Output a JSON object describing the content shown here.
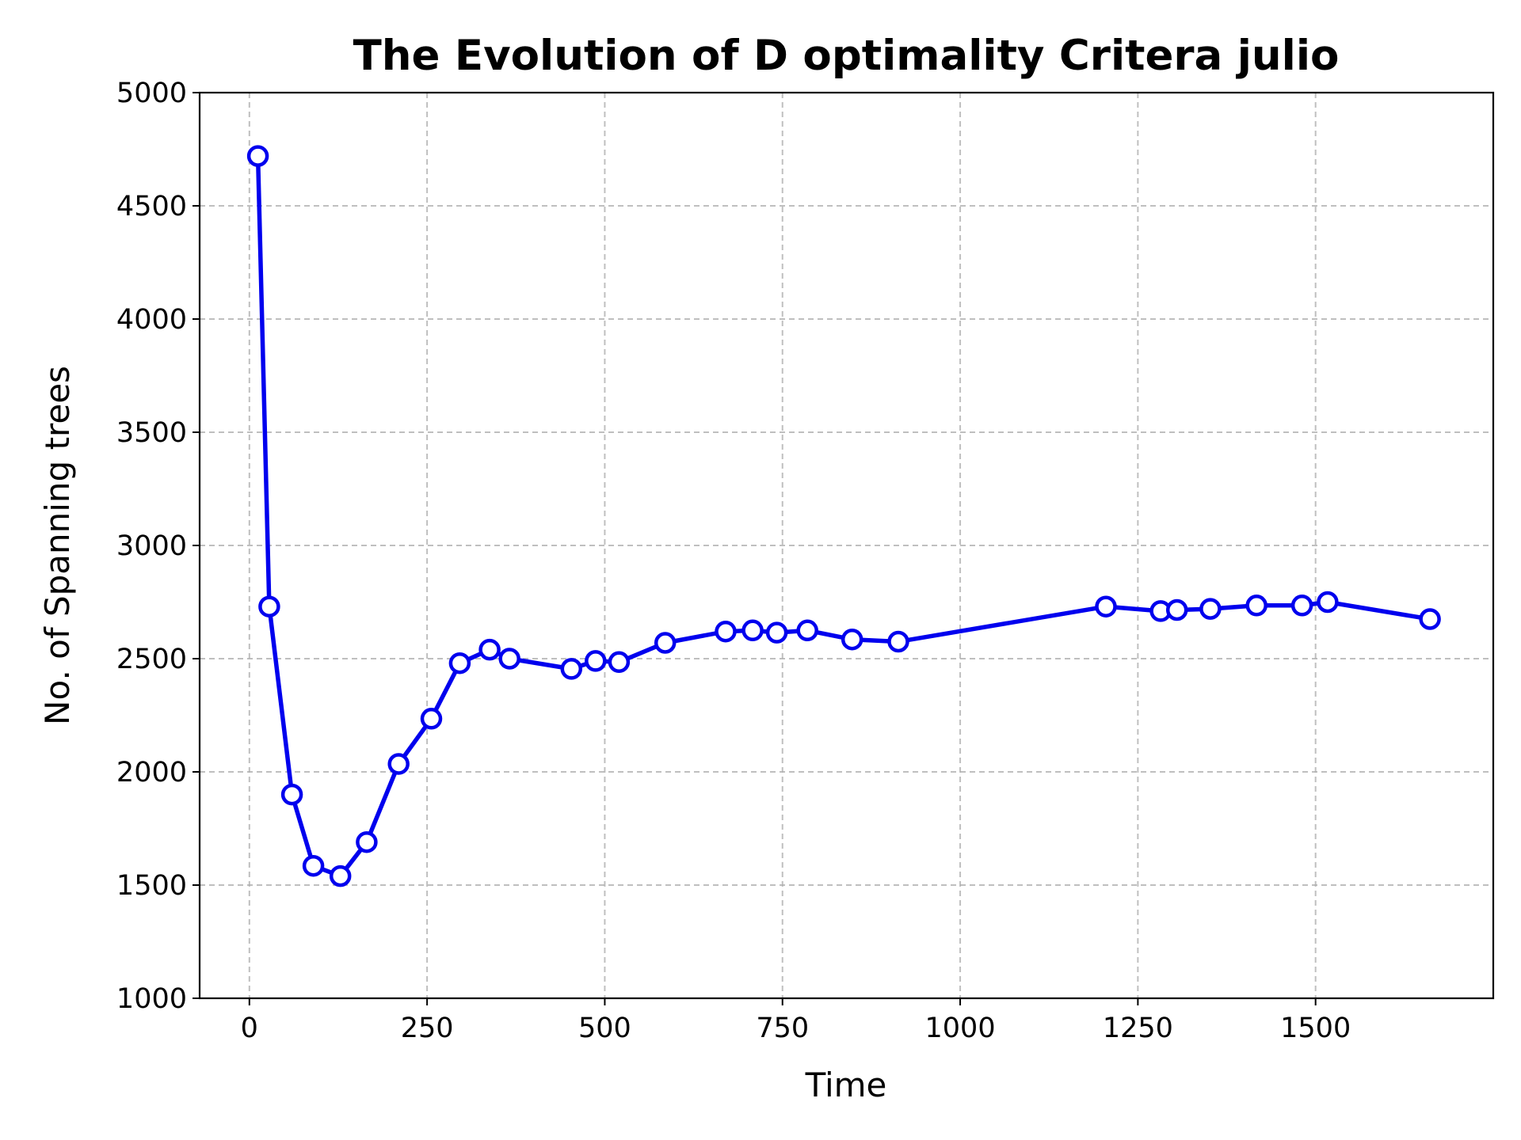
{
  "chart_data": {
    "type": "line",
    "title": "The Evolution of D optimality Critera julio",
    "xlabel": "Time",
    "ylabel": "No. of Spanning trees",
    "xlim": [
      -70,
      1750
    ],
    "ylim": [
      1000,
      5000
    ],
    "xticks": [
      0,
      250,
      500,
      750,
      1000,
      1250,
      1500
    ],
    "yticks": [
      1000,
      1500,
      2000,
      2500,
      3000,
      3500,
      4000,
      4500,
      5000
    ],
    "grid": true,
    "series": [
      {
        "color": "#0000ee",
        "marker": "circle-open",
        "x": [
          12,
          28,
          60,
          90,
          128,
          165,
          210,
          256,
          296,
          338,
          366,
          453,
          487,
          520,
          585,
          670,
          708,
          742,
          785,
          848,
          913,
          1205,
          1282,
          1305,
          1352,
          1417,
          1481,
          1517,
          1661
        ],
        "y": [
          4720,
          2730,
          1900,
          1585,
          1540,
          1690,
          2035,
          2235,
          2480,
          2540,
          2500,
          2455,
          2490,
          2485,
          2570,
          2620,
          2625,
          2615,
          2625,
          2585,
          2575,
          2730,
          2710,
          2715,
          2720,
          2735,
          2735,
          2750,
          2675
        ]
      }
    ]
  }
}
